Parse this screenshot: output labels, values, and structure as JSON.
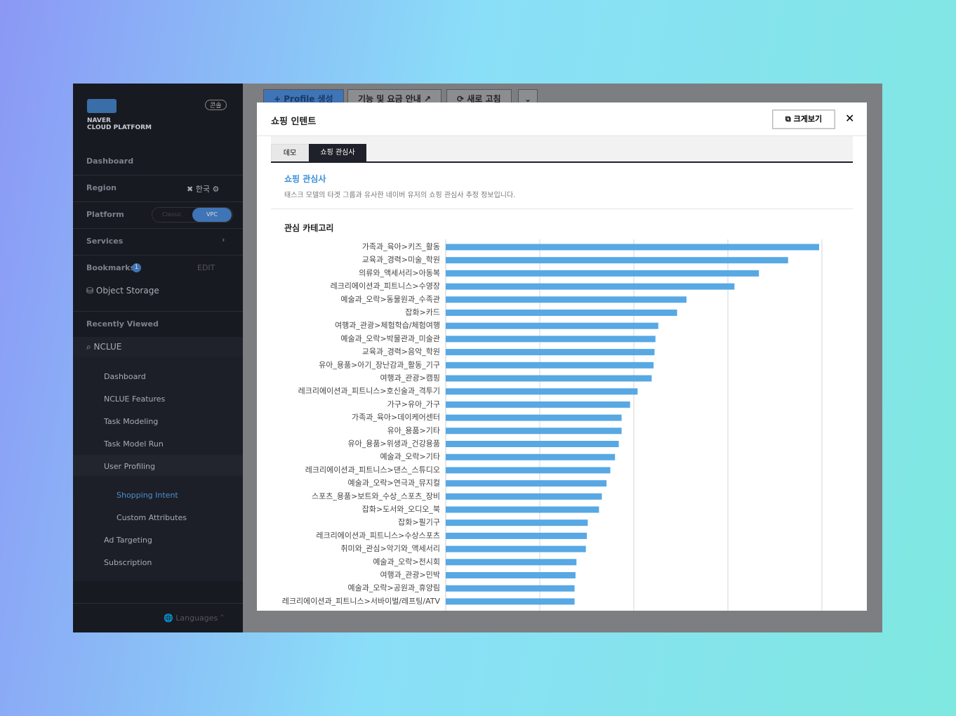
{
  "sidebar": {
    "badge": "콘솔",
    "logo_line1": "NAVER",
    "logo_line2": "CLOUD PLATFORM",
    "dashboard": "Dashboard",
    "region": "Region",
    "region_value": "한국",
    "platform": "Platform",
    "platform_options": [
      "Classic",
      "VPC"
    ],
    "services": "Services",
    "bookmarks": "Bookmarks",
    "bookmarks_count": "1",
    "edit": "EDIT",
    "object_storage": "Object Storage",
    "recently_viewed": "Recently Viewed",
    "nclue": "NCLUE",
    "menu": [
      "Dashboard",
      "NCLUE Features",
      "Task Modeling",
      "Task Model Run"
    ],
    "user_profiling": "User Profiling",
    "submenu": [
      "Shopping Intent",
      "Custom Attributes"
    ],
    "menu2": [
      "Ad Targeting",
      "Subscription"
    ],
    "languages": "Languages"
  },
  "toolbar": {
    "buttons": [
      "Profile 생성",
      "기능 및 요금 안내",
      "새로 고침"
    ]
  },
  "modal": {
    "title": "쇼핑 인텐트",
    "expand": "크게보기",
    "tabs": [
      "데모",
      "쇼핑 관심사"
    ],
    "section_title": "쇼핑 관심사",
    "section_desc": "태스크 모델의 타겟 그룹과 유사한 네이버 유저의 쇼핑 관심사 추정 정보입니다."
  },
  "chart_data": {
    "type": "barh",
    "title": "관심 카테고리",
    "color": "#58a8e4",
    "xlim": [
      0,
      4
    ],
    "xticks": [
      1,
      2,
      3,
      4
    ],
    "tick_labels": false,
    "grid": true,
    "categories": [
      "가족과_육아>키즈_활동",
      "교육과_경력>미술_학원",
      "의류와_액세서리>아동복",
      "레크리에이션과_피트니스>수영장",
      "예술과_오락>동물원과_수족관",
      "잡화>카드",
      "여행과_관광>체험학습/체험여행",
      "예술과_오락>박물관과_미술관",
      "교육과_경력>음악_학원",
      "유아_용품>아기_장난감과_활동_기구",
      "여행과_관광>캠핑",
      "레크리에이션과_피트니스>호신술과_격투기",
      "가구>유아_가구",
      "가족과_육아>데이케어센터",
      "유아_용품>기타",
      "유아_용품>위생과_건강용품",
      "예술과_오락>기타",
      "레크리에이션과_피트니스>댄스_스튜디오",
      "예술과_오락>연극과_뮤지컬",
      "스포츠_용품>보트와_수상_스포츠_장비",
      "잡화>도서와_오디오_북",
      "잡화>필기구",
      "레크리에이션과_피트니스>수상스포츠",
      "취미와_관심>악기와_액세서리",
      "예술과_오락>전시회",
      "여행과_관광>민박",
      "예술과_오락>공원과_휴양림",
      "레크리에이션과_피트니스>서바이벌/레프팅/ATV"
    ],
    "values": [
      3.97,
      3.64,
      3.33,
      3.07,
      2.56,
      2.46,
      2.26,
      2.23,
      2.22,
      2.21,
      2.19,
      2.04,
      1.96,
      1.87,
      1.87,
      1.84,
      1.8,
      1.75,
      1.71,
      1.66,
      1.63,
      1.51,
      1.5,
      1.49,
      1.39,
      1.38,
      1.37,
      1.37
    ]
  }
}
